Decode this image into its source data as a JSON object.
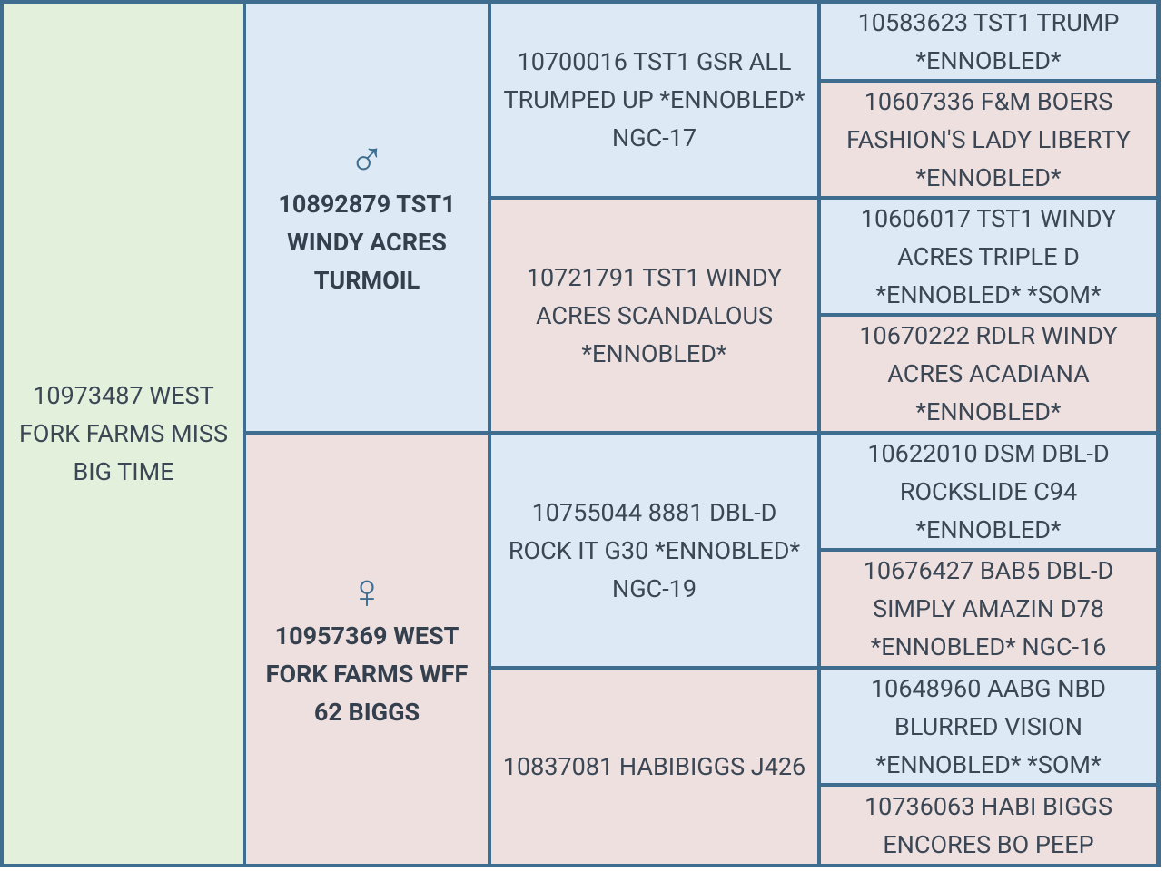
{
  "generations": [
    [
      "10973487 WEST FORK FARMS MISS BIG TIME"
    ],
    [
      "10892879 TST1 WINDY ACRES TURMOIL",
      "10957369 WEST FORK FARMS WFF 62 BIGGS"
    ],
    [
      "10700016 TST1 GSR ALL TRUMPED UP *ENNOBLED* NGC-17",
      "10721791 TST1 WINDY ACRES SCANDALOUS *ENNOBLED*",
      "10755044 8881 DBL-D ROCK IT G30 *ENNOBLED* NGC-19",
      "10837081 HABIBIGGS J426"
    ],
    [
      "10583623 TST1 TRUMP *ENNOBLED*",
      "10607336 F&M BOERS FASHION'S LADY LIBERTY *ENNOBLED*",
      "10606017 TST1 WINDY ACRES TRIPLE D *ENNOBLED* *SOM*",
      "10670222 RDLR WINDY ACRES ACADIANA *ENNOBLED*",
      "10622010 DSM DBL-D ROCKSLIDE C94 *ENNOBLED*",
      "10676427 BAB5 DBL-D SIMPLY AMAZIN D78 *ENNOBLED* NGC-16",
      "10648960 AABG NBD BLURRED VISION *ENNOBLED* *SOM*",
      "10736063 HABI BIGGS ENCORES BO PEEP"
    ]
  ]
}
